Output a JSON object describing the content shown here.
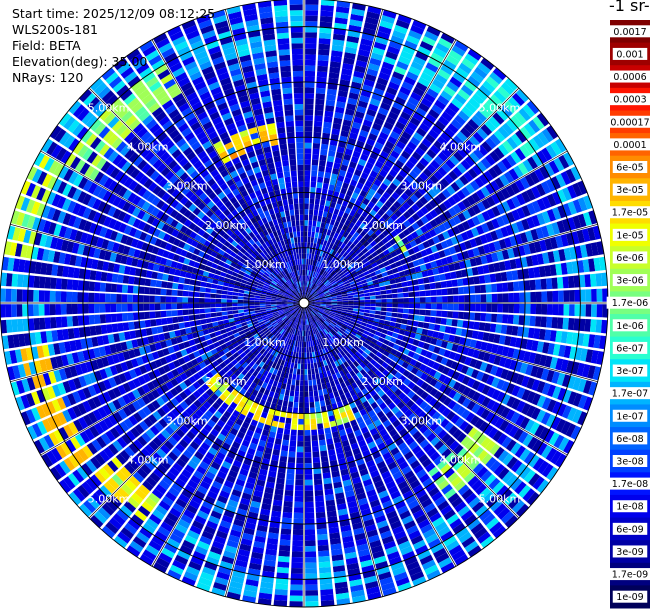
{
  "header": {
    "start_time": "Start time: 2025/12/09 08:12:25",
    "instrument": "WLS200s-181",
    "field": "Field: BETA",
    "elevation": "Elevation(deg): 35.00",
    "nrays": "NRays: 120"
  },
  "colorbar": {
    "title": "-1 sr-",
    "labels": [
      "0.0017",
      "0.001",
      "0.0006",
      "0.0003",
      "0.00017",
      "0.0001",
      "6e-05",
      "3e-05",
      "1.7e-05",
      "1e-05",
      "6e-06",
      "3e-06",
      "1.7e-06",
      "1e-06",
      "6e-07",
      "3e-07",
      "1.7e-07",
      "1e-07",
      "6e-08",
      "3e-08",
      "1.7e-08",
      "1e-08",
      "6e-09",
      "3e-09",
      "1.7e-09",
      "1e-09"
    ],
    "colors": [
      "#7f0000",
      "#9e0000",
      "#c80000",
      "#ff1400",
      "#ff3c00",
      "#ff6400",
      "#ff8c00",
      "#ffb400",
      "#ffdc00",
      "#f0ff00",
      "#c8ff2a",
      "#a0ff57",
      "#78ff80",
      "#50ffa8",
      "#2affd0",
      "#00e4f8",
      "#00b4ff",
      "#008cff",
      "#0064ff",
      "#0040ff",
      "#0014ff",
      "#0000ec",
      "#0000c8",
      "#0000a4",
      "#00007f",
      "#00005a"
    ]
  },
  "chart_data": {
    "type": "heatmap",
    "projection": "polar-ppi",
    "field": "BETA",
    "elevation_deg": 35.0,
    "n_rays": 120,
    "range_rings_km": [
      1,
      2,
      3,
      4,
      5
    ],
    "ring_labels": [
      "1.00km",
      "2.00km",
      "3.00km",
      "4.00km",
      "5.00km"
    ],
    "max_range_km": 5.5,
    "color_scale": "log",
    "vmin": 1e-09,
    "vmax": 0.0017,
    "enhanced_regions": [
      {
        "range_km": [
          2.9,
          3.25
        ],
        "azimuth_deg": [
          330,
          350
        ],
        "level": 2e-05
      },
      {
        "range_km": [
          2.0,
          2.3
        ],
        "azimuth_deg": [
          155,
          230
        ],
        "level": 1e-05
      },
      {
        "range_km": [
          4.7,
          5.2
        ],
        "azimuth_deg": [
          235,
          260
        ],
        "level": 2e-05
      },
      {
        "range_km": [
          4.4,
          4.9
        ],
        "azimuth_deg": [
          215,
          230
        ],
        "level": 1e-05
      },
      {
        "range_km": [
          5.0,
          5.5
        ],
        "azimuth_deg": [
          280,
          300
        ],
        "level": 6e-06
      },
      {
        "range_km": [
          4.4,
          5.0
        ],
        "azimuth_deg": [
          300,
          330
        ],
        "level": 3e-06
      },
      {
        "range_km": [
          3.8,
          4.4
        ],
        "azimuth_deg": [
          125,
          145
        ],
        "level": 3e-06
      },
      {
        "range_km": [
          2.0,
          2.1
        ],
        "azimuth_deg": [
          55,
          62
        ],
        "level": 3e-06
      },
      {
        "range_km": [
          4.5,
          5.4
        ],
        "azimuth_deg": [
          20,
          60
        ],
        "level": 3e-07
      }
    ]
  }
}
